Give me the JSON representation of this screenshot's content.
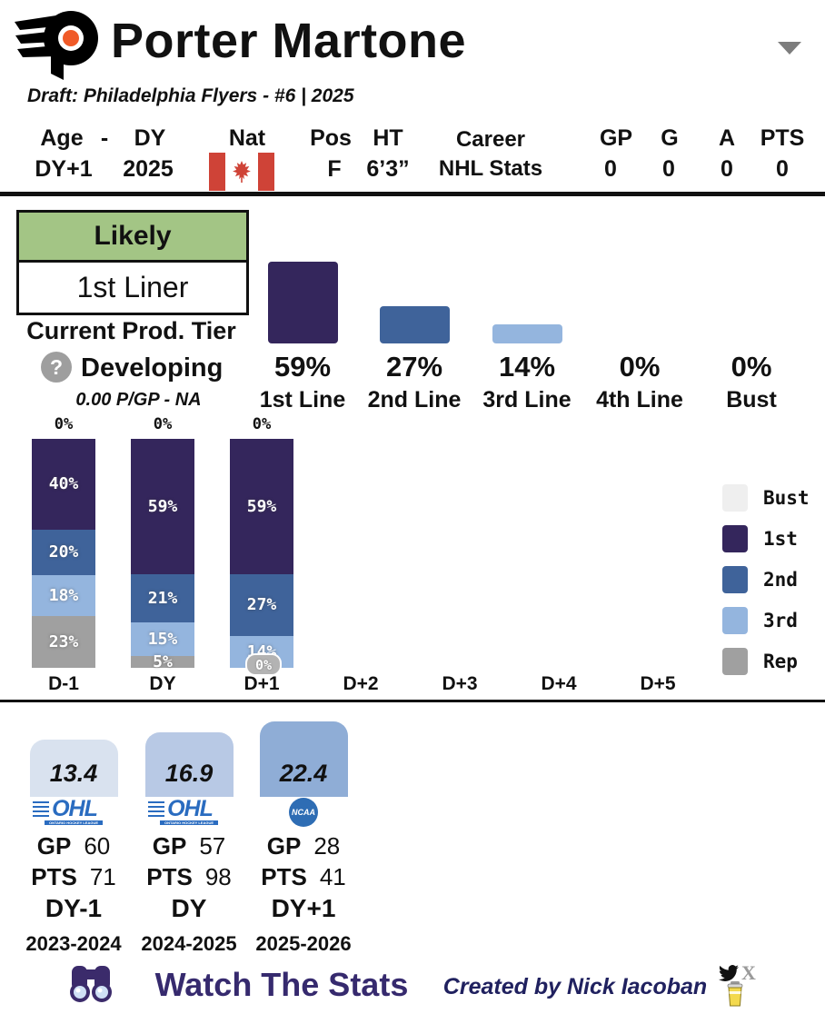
{
  "header": {
    "title": "Porter Martone",
    "draft_line": "Draft: Philadelphia Flyers - #6 | 2025",
    "team_logo": "philadelphia-flyers",
    "flyers_orange": "#f05a28"
  },
  "info": {
    "labels": {
      "age": "Age",
      "dash": "-",
      "dy": "DY",
      "nat": "Nat",
      "pos": "Pos",
      "ht": "HT",
      "career1": "Career",
      "career2": "NHL Stats"
    },
    "values": {
      "age": "DY+1",
      "dy": "2025",
      "nat": "canada-flag",
      "pos": "F",
      "ht": "6’3”"
    },
    "career_stats": {
      "headers": [
        "GP",
        "G",
        "A",
        "PTS"
      ],
      "values": [
        "0",
        "0",
        "0",
        "0"
      ]
    }
  },
  "projection": {
    "badge": {
      "top": "Likely",
      "bottom": "1st Liner",
      "top_bg": "#a3c585"
    },
    "current_tier_label": "Current Prod. Tier",
    "tier_status": "Developing",
    "pgp_note": "0.00 P/GP - NA"
  },
  "chart_data": [
    {
      "id": "nhl_line_probability",
      "type": "bar",
      "title": "",
      "categories": [
        "1st Line",
        "2nd Line",
        "3rd Line",
        "4th Line",
        "Bust"
      ],
      "values": [
        59,
        27,
        14,
        0,
        0
      ],
      "value_labels": [
        "59%",
        "27%",
        "14%",
        "0%",
        "0%"
      ],
      "bar_colors": [
        "#34265c",
        "#3f639a",
        "#94b5de",
        "#34265c",
        "#34265c"
      ],
      "ylim": [
        0,
        62
      ],
      "grid": false
    },
    {
      "id": "projection_by_year",
      "type": "stacked-bar",
      "categories": [
        "D-1",
        "DY",
        "D+1",
        "D+2",
        "D+3",
        "D+4",
        "D+5"
      ],
      "top_labels": [
        "0%",
        "0%",
        "0%",
        "",
        "",
        "",
        ""
      ],
      "series": [
        {
          "name": "Bust",
          "color": "#efefef",
          "values": [
            0,
            0,
            0,
            null,
            null,
            null,
            null
          ]
        },
        {
          "name": "1st",
          "color": "#34265c",
          "values": [
            40,
            59,
            59,
            null,
            null,
            null,
            null
          ]
        },
        {
          "name": "2nd",
          "color": "#3f639a",
          "values": [
            20,
            21,
            27,
            null,
            null,
            null,
            null
          ]
        },
        {
          "name": "3rd",
          "color": "#94b5de",
          "values": [
            18,
            15,
            14,
            null,
            null,
            null,
            null
          ]
        },
        {
          "name": "Rep",
          "color": "#a0a0a0",
          "values": [
            23,
            5,
            0,
            null,
            null,
            null,
            null
          ]
        }
      ],
      "zero_chips": [
        {
          "category": "D+1",
          "label": "0%"
        }
      ],
      "legend": [
        "Bust",
        "1st",
        "2nd",
        "3rd",
        "Rep"
      ],
      "legend_position": "right",
      "grid": false
    },
    {
      "id": "season_production",
      "type": "bar",
      "values": [
        13.4,
        16.9,
        22.4
      ],
      "value_labels": [
        "13.4",
        "16.9",
        "22.4"
      ],
      "bar_colors": [
        "#d9e2ef",
        "#b8c9e5",
        "#8fadd6"
      ],
      "columns": [
        {
          "league": "OHL",
          "league_tagline": "ONTARIO HOCKEY LEAGUE",
          "gp_label": "GP",
          "gp": "60",
          "pts_label": "PTS",
          "pts": "71",
          "year": "DY-1",
          "season": "2023-2024"
        },
        {
          "league": "OHL",
          "league_tagline": "ONTARIO HOCKEY LEAGUE",
          "gp_label": "GP",
          "gp": "57",
          "pts_label": "PTS",
          "pts": "98",
          "year": "DY",
          "season": "2024-2025"
        },
        {
          "league": "NCAA",
          "league_tagline": "",
          "gp_label": "GP",
          "gp": "28",
          "pts_label": "PTS",
          "pts": "41",
          "year": "DY+1",
          "season": "2025-2026"
        }
      ]
    }
  ],
  "footer": {
    "brand": "Watch The Stats",
    "credit": "Created by Nick Iacoban",
    "icons": [
      "binoculars",
      "twitter-bird",
      "x-logo",
      "coffee-cup"
    ]
  }
}
